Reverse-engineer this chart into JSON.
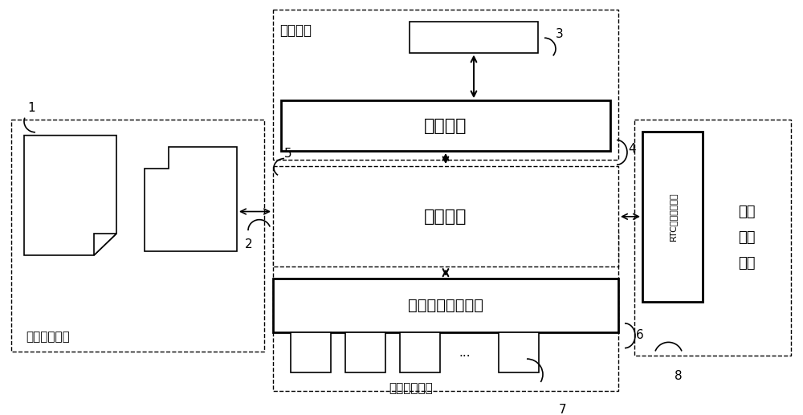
{
  "bg_color": "#ffffff",
  "labels": {
    "comm_unit_label": "通信单元",
    "comm_module": "通信模块",
    "micro_controller": "微控制器",
    "logic_io": "逻辑输入输出驱动",
    "logic_ctrl_unit": "逻辑控制单元",
    "active_storage": "活动存储单元",
    "rtc_module": "RTC控制管理模块",
    "time_ctrl_unit": "时间\n控制\n单元",
    "num_1": "1",
    "num_2": "2",
    "num_3": "3",
    "num_4": "4",
    "num_5": "5",
    "num_6": "6",
    "num_7": "7",
    "num_8": "8",
    "ellipsis": "..."
  },
  "fig_width": 10.0,
  "fig_height": 5.17
}
